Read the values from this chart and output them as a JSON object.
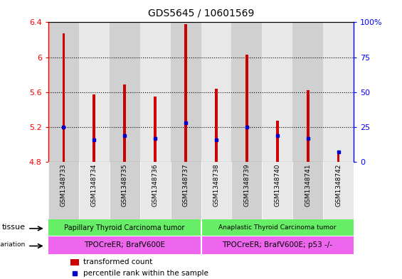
{
  "title": "GDS5645 / 10601569",
  "samples": [
    "GSM1348733",
    "GSM1348734",
    "GSM1348735",
    "GSM1348736",
    "GSM1348737",
    "GSM1348738",
    "GSM1348739",
    "GSM1348740",
    "GSM1348741",
    "GSM1348742"
  ],
  "transformed_count": [
    6.27,
    5.57,
    5.69,
    5.55,
    6.38,
    5.64,
    6.03,
    5.27,
    5.62,
    4.93
  ],
  "percentile_rank": [
    25,
    16,
    19,
    17,
    28,
    16,
    25,
    19,
    17,
    7
  ],
  "ylim": [
    4.8,
    6.4
  ],
  "y2lim": [
    0,
    100
  ],
  "yticks": [
    4.8,
    5.2,
    5.6,
    6.0,
    6.4
  ],
  "ytick_labels": [
    "4.8",
    "5.2",
    "5.6",
    "6",
    "6.4"
  ],
  "y2ticks": [
    0,
    25,
    50,
    75,
    100
  ],
  "y2tick_labels": [
    "0",
    "25",
    "50",
    "75",
    "100%"
  ],
  "bar_color": "#cc0000",
  "blue_color": "#0000cc",
  "bar_width": 0.08,
  "baseline": 4.8,
  "tissue_labels": [
    "Papillary Thyroid Carcinoma tumor",
    "Anaplastic Thyroid Carcinoma tumor"
  ],
  "tissue_color": "#66ee66",
  "genotype_labels": [
    "TPOCreER; BrafV600E",
    "TPOCreER; BrafV600E; p53 -/-"
  ],
  "genotype_color": "#ee66ee",
  "col_bg_even": "#d0d0d0",
  "col_bg_odd": "#e8e8e8",
  "title_fontsize": 10,
  "tick_fontsize": 8,
  "sample_fontsize": 6.5
}
